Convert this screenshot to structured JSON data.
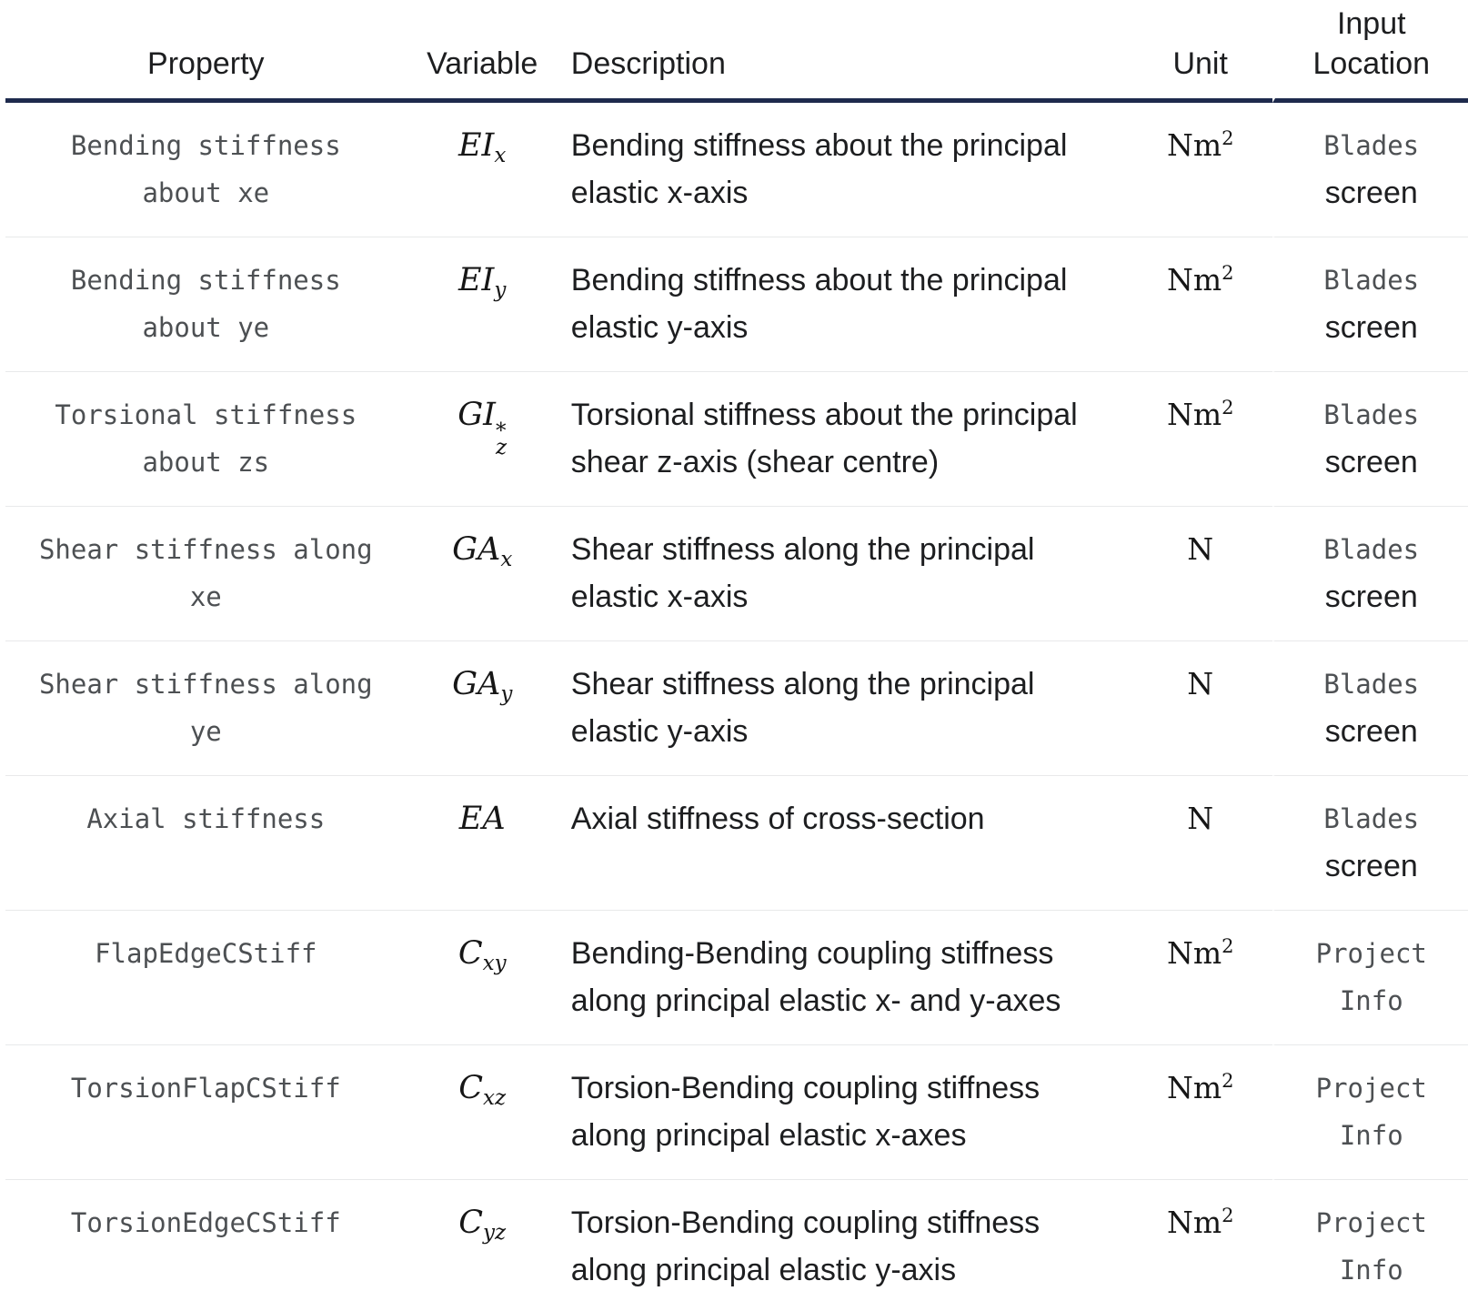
{
  "colors": {
    "header_rule": "#1e2a4d",
    "row_rule": "#e8e9ea",
    "code_text": "#4d5053",
    "body_text": "#1d1e20",
    "math_text": "#161616",
    "background": "#ffffff"
  },
  "table": {
    "columns": [
      {
        "id": "property",
        "label": "Property"
      },
      {
        "id": "variable",
        "label": "Variable"
      },
      {
        "id": "description",
        "label": "Description"
      },
      {
        "id": "unit",
        "label": "Unit"
      },
      {
        "id": "input_location",
        "label": "Input Location"
      }
    ],
    "rows": [
      {
        "property_lines": [
          "Bending stiffness",
          "about xe"
        ],
        "variable": {
          "base": "EI",
          "sub": "x"
        },
        "description_lines": [
          "Bending stiffness about the principal",
          "elastic x-axis"
        ],
        "unit": {
          "base": "Nm",
          "sup": "2"
        },
        "location_lines": [
          {
            "text": "Blades",
            "code": true
          },
          {
            "text": "screen",
            "code": false
          }
        ]
      },
      {
        "property_lines": [
          "Bending stiffness",
          "about ye"
        ],
        "variable": {
          "base": "EI",
          "sub": "y"
        },
        "description_lines": [
          "Bending stiffness about the principal",
          "elastic y-axis"
        ],
        "unit": {
          "base": "Nm",
          "sup": "2"
        },
        "location_lines": [
          {
            "text": "Blades",
            "code": true
          },
          {
            "text": "screen",
            "code": false
          }
        ]
      },
      {
        "property_lines": [
          "Torsional stiffness",
          "about zs"
        ],
        "variable": {
          "base": "GI",
          "sub": "z",
          "sup": "*"
        },
        "description_lines": [
          "Torsional stiffness about the principal",
          "shear z-axis (shear centre)"
        ],
        "unit": {
          "base": "Nm",
          "sup": "2"
        },
        "location_lines": [
          {
            "text": "Blades",
            "code": true
          },
          {
            "text": "screen",
            "code": false
          }
        ]
      },
      {
        "property_lines": [
          "Shear stiffness along",
          "xe"
        ],
        "variable": {
          "base": "GA",
          "sub": "x"
        },
        "description_lines": [
          "Shear stiffness along the principal",
          "elastic x-axis"
        ],
        "unit": {
          "base": "N"
        },
        "location_lines": [
          {
            "text": "Blades",
            "code": true
          },
          {
            "text": "screen",
            "code": false
          }
        ]
      },
      {
        "property_lines": [
          "Shear stiffness along",
          "ye"
        ],
        "variable": {
          "base": "GA",
          "sub": "y"
        },
        "description_lines": [
          "Shear stiffness along the principal",
          "elastic y-axis"
        ],
        "unit": {
          "base": "N"
        },
        "location_lines": [
          {
            "text": "Blades",
            "code": true
          },
          {
            "text": "screen",
            "code": false
          }
        ]
      },
      {
        "property_lines": [
          "Axial stiffness"
        ],
        "variable": {
          "base": "EA"
        },
        "description_lines": [
          "Axial stiffness of cross-section"
        ],
        "unit": {
          "base": "N"
        },
        "location_lines": [
          {
            "text": "Blades",
            "code": true
          },
          {
            "text": "screen",
            "code": false
          }
        ]
      },
      {
        "property_lines": [
          "FlapEdgeCStiff"
        ],
        "variable": {
          "base": "C",
          "sub": "xy"
        },
        "description_lines": [
          "Bending-Bending coupling stiffness",
          "along principal elastic x- and y-axes"
        ],
        "unit": {
          "base": "Nm",
          "sup": "2"
        },
        "location_lines": [
          {
            "text": "Project",
            "code": true
          },
          {
            "text": "Info",
            "code": true
          }
        ]
      },
      {
        "property_lines": [
          "TorsionFlapCStiff"
        ],
        "variable": {
          "base": "C",
          "sub": "xz"
        },
        "description_lines": [
          "Torsion-Bending coupling stiffness",
          "along principal elastic x-axes"
        ],
        "unit": {
          "base": "Nm",
          "sup": "2"
        },
        "location_lines": [
          {
            "text": "Project",
            "code": true
          },
          {
            "text": "Info",
            "code": true
          }
        ]
      },
      {
        "property_lines": [
          "TorsionEdgeCStiff"
        ],
        "variable": {
          "base": "C",
          "sub": "yz"
        },
        "description_lines": [
          "Torsion-Bending coupling stiffness",
          "along principal elastic y-axis"
        ],
        "unit": {
          "base": "Nm",
          "sup": "2"
        },
        "location_lines": [
          {
            "text": "Project",
            "code": true
          },
          {
            "text": "Info",
            "code": true
          }
        ]
      }
    ]
  }
}
